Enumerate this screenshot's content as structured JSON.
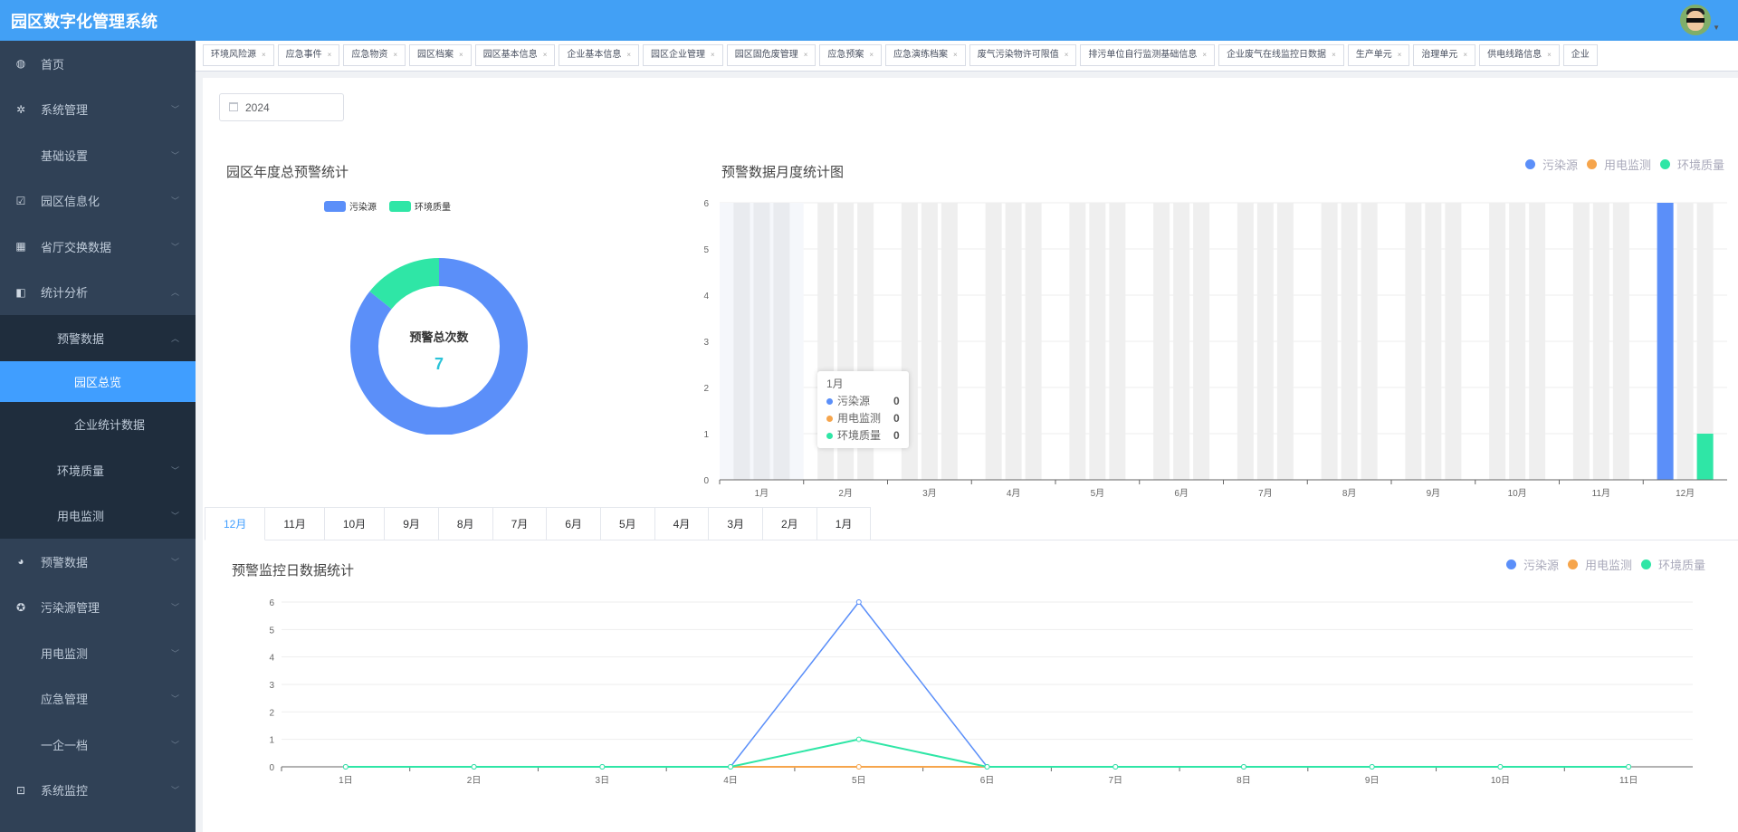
{
  "header": {
    "title": "园区数字化管理系统"
  },
  "sidebar": {
    "items": [
      {
        "label": "首页",
        "icon": "dashboard-icon",
        "level": 0,
        "chevron": ""
      },
      {
        "label": "系统管理",
        "icon": "gear-icon",
        "level": 0,
        "chevron": "down"
      },
      {
        "label": "基础设置",
        "icon": "",
        "level": 0,
        "chevron": "down"
      },
      {
        "label": "园区信息化",
        "icon": "checkbox-icon",
        "level": 0,
        "chevron": "down"
      },
      {
        "label": "省厅交换数据",
        "icon": "table-icon",
        "level": 0,
        "chevron": "down"
      },
      {
        "label": "统计分析",
        "icon": "chart-book-icon",
        "level": 0,
        "chevron": "up"
      },
      {
        "label": "预警数据",
        "icon": "",
        "level": 1,
        "chevron": "up"
      },
      {
        "label": "园区总览",
        "icon": "",
        "level": 2,
        "chevron": "",
        "active": true
      },
      {
        "label": "企业统计数据",
        "icon": "",
        "level": 2,
        "chevron": ""
      },
      {
        "label": "环境质量",
        "icon": "",
        "level": 1,
        "chevron": "down"
      },
      {
        "label": "用电监测",
        "icon": "",
        "level": 1,
        "chevron": "down"
      },
      {
        "label": "预警数据",
        "icon": "globe-icon",
        "level": 0,
        "chevron": "down"
      },
      {
        "label": "污染源管理",
        "icon": "lifebuoy-icon",
        "level": 0,
        "chevron": "down"
      },
      {
        "label": "用电监测",
        "icon": "",
        "level": 0,
        "chevron": "down"
      },
      {
        "label": "应急管理",
        "icon": "",
        "level": 0,
        "chevron": "down"
      },
      {
        "label": "一企一档",
        "icon": "",
        "level": 0,
        "chevron": "down"
      },
      {
        "label": "系统监控",
        "icon": "monitor-icon",
        "level": 0,
        "chevron": "down"
      }
    ]
  },
  "tags": [
    "环境风险源",
    "应急事件",
    "应急物资",
    "园区档案",
    "园区基本信息",
    "企业基本信息",
    "园区企业管理",
    "园区固危废管理",
    "应急预案",
    "应急演练档案",
    "废气污染物许可限值",
    "排污单位自行监测基础信息",
    "企业废气在线监控日数据",
    "生产单元",
    "治理单元",
    "供电线路信息",
    "企业"
  ],
  "year_picker": {
    "value": "2024"
  },
  "colors": {
    "污染源": "#5b8ff9",
    "用电监测": "#f6a54c",
    "环境质量": "#2fe6a6",
    "header": "#42a0f5",
    "sidebar": "#304156",
    "active": "#409eff"
  },
  "month_tabs": {
    "items": [
      "12月",
      "11月",
      "10月",
      "9月",
      "8月",
      "7月",
      "6月",
      "5月",
      "4月",
      "3月",
      "2月",
      "1月"
    ],
    "selected": "12月"
  },
  "tooltip": {
    "title": "1月",
    "rows": [
      {
        "name": "污染源",
        "value": "0"
      },
      {
        "name": "用电监测",
        "value": "0"
      },
      {
        "name": "环境质量",
        "value": "0"
      }
    ]
  },
  "chart_data": [
    {
      "type": "pie",
      "title": "园区年度总预警统计",
      "center_label": "预警总次数",
      "center_value": "7",
      "legend": [
        "污染源",
        "环境质量"
      ],
      "slices": [
        {
          "name": "污染源",
          "value": 6
        },
        {
          "name": "环境质量",
          "value": 1
        }
      ]
    },
    {
      "type": "bar",
      "title": "预警数据月度统计图",
      "legend": [
        "污染源",
        "用电监测",
        "环境质量"
      ],
      "legend_position": "top-right",
      "categories": [
        "1月",
        "2月",
        "3月",
        "4月",
        "5月",
        "6月",
        "7月",
        "8月",
        "9月",
        "10月",
        "11月",
        "12月"
      ],
      "ylim": [
        0,
        6
      ],
      "yticks": [
        "0",
        "1",
        "2",
        "3",
        "4",
        "5",
        "6"
      ],
      "grid": true,
      "series": [
        {
          "name": "污染源",
          "values": [
            0,
            0,
            0,
            0,
            0,
            0,
            0,
            0,
            0,
            0,
            0,
            6
          ]
        },
        {
          "name": "用电监测",
          "values": [
            0,
            0,
            0,
            0,
            0,
            0,
            0,
            0,
            0,
            0,
            0,
            0
          ]
        },
        {
          "name": "环境质量",
          "values": [
            0,
            0,
            0,
            0,
            0,
            0,
            0,
            0,
            0,
            0,
            0,
            1
          ]
        }
      ]
    },
    {
      "type": "line",
      "title": "预警监控日数据统计",
      "legend": [
        "污染源",
        "用电监测",
        "环境质量"
      ],
      "legend_position": "top-right",
      "categories": [
        "1日",
        "2日",
        "3日",
        "4日",
        "5日",
        "6日",
        "7日",
        "8日",
        "9日",
        "10日",
        "11日"
      ],
      "ylim": [
        0,
        6
      ],
      "yticks": [
        "0",
        "1",
        "2",
        "3",
        "4",
        "5",
        "6"
      ],
      "grid": true,
      "series": [
        {
          "name": "污染源",
          "values": [
            0,
            0,
            0,
            0,
            6,
            0,
            0,
            0,
            0,
            0,
            0
          ]
        },
        {
          "name": "用电监测",
          "values": [
            0,
            0,
            0,
            0,
            0,
            0,
            0,
            0,
            0,
            0,
            0
          ]
        },
        {
          "name": "环境质量",
          "values": [
            0,
            0,
            0,
            0,
            1,
            0,
            0,
            0,
            0,
            0,
            0
          ]
        }
      ]
    }
  ]
}
